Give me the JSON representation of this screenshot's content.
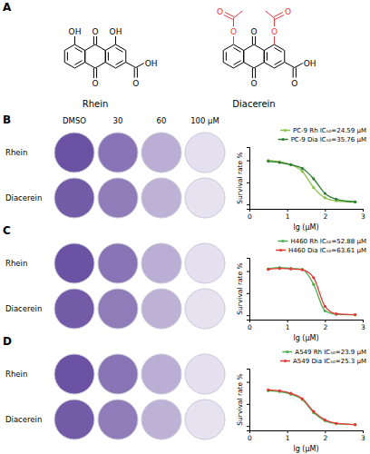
{
  "figure": {
    "panel_labels": [
      "A",
      "B",
      "C",
      "D"
    ],
    "structures": [
      {
        "name": "Rhein",
        "atoms": [
          "OH",
          "O",
          "OH",
          "O",
          "O",
          "OH"
        ]
      },
      {
        "name": "Diacerein",
        "atoms": [
          "O",
          "O",
          "O",
          "O",
          "O",
          "OH",
          "O",
          "O"
        ]
      }
    ],
    "plate_rows": [
      "Rhein",
      "Diacerein"
    ],
    "plate_columns": [
      "DMSO",
      "30",
      "60",
      "100 μM"
    ]
  },
  "chart_data": [
    {
      "type": "line",
      "x_label": "lg (μM)",
      "y_label": "Survival rate %",
      "x": [
        0.5,
        0.8,
        1.1,
        1.4,
        1.7,
        2.0,
        2.3,
        2.8
      ],
      "xlim": [
        0,
        3
      ],
      "xticks": [
        0,
        1,
        2,
        3
      ],
      "ylim": [
        -10,
        130
      ],
      "yticks": [
        0,
        50,
        100
      ],
      "tick_labels": "x",
      "legend": "upper right",
      "marker": "circle",
      "series": [
        {
          "name": "PC-9 Rh IC₅₀=24.59 μM",
          "color": "#8bc34a",
          "values": [
            100,
            97,
            90,
            75,
            38,
            15,
            8,
            5
          ]
        },
        {
          "name": "PC-9 Dia IC₅₀=35.76 μM",
          "color": "#2e7d32",
          "values": [
            98,
            95,
            90,
            82,
            58,
            25,
            12,
            6
          ]
        }
      ]
    },
    {
      "type": "line",
      "x_label": "lg (μM)",
      "y_label": "Survival rate %",
      "x": [
        0.5,
        0.8,
        1.1,
        1.4,
        1.7,
        2.0,
        2.3,
        2.8
      ],
      "xlim": [
        0,
        3
      ],
      "xticks": [
        0,
        1,
        2,
        3
      ],
      "ylim": [
        -10,
        130
      ],
      "yticks": [
        0,
        50,
        100
      ],
      "tick_labels": "x",
      "legend": "upper right",
      "marker": "circle",
      "series": [
        {
          "name": "H460 Rh IC₅₀=52.88 μM",
          "color": "#4caf50",
          "values": [
            105,
            108,
            106,
            104,
            70,
            10,
            2,
            1
          ]
        },
        {
          "name": "H460 Dia IC₅₀=63.61 μM",
          "color": "#e53935",
          "values": [
            104,
            106,
            105,
            103,
            85,
            20,
            3,
            1
          ]
        }
      ]
    },
    {
      "type": "line",
      "x_label": "lg (μM)",
      "y_label": "Survival rate %",
      "x": [
        0.5,
        0.8,
        1.1,
        1.4,
        1.7,
        2.0,
        2.3,
        2.8
      ],
      "xlim": [
        0,
        3
      ],
      "xticks": [
        0,
        1,
        2,
        3
      ],
      "ylim": [
        -10,
        130
      ],
      "yticks": [
        0,
        50,
        100
      ],
      "tick_labels": "x",
      "legend": "upper right",
      "marker": "circle",
      "series": [
        {
          "name": "A549 Rh IC₅₀=23.9 μM",
          "color": "#4caf50",
          "values": [
            80,
            78,
            72,
            60,
            30,
            12,
            5,
            3
          ]
        },
        {
          "name": "A549 Dia IC₅₀=25.3 μM",
          "color": "#e53935",
          "values": [
            82,
            80,
            74,
            62,
            33,
            14,
            6,
            3
          ]
        }
      ]
    }
  ]
}
